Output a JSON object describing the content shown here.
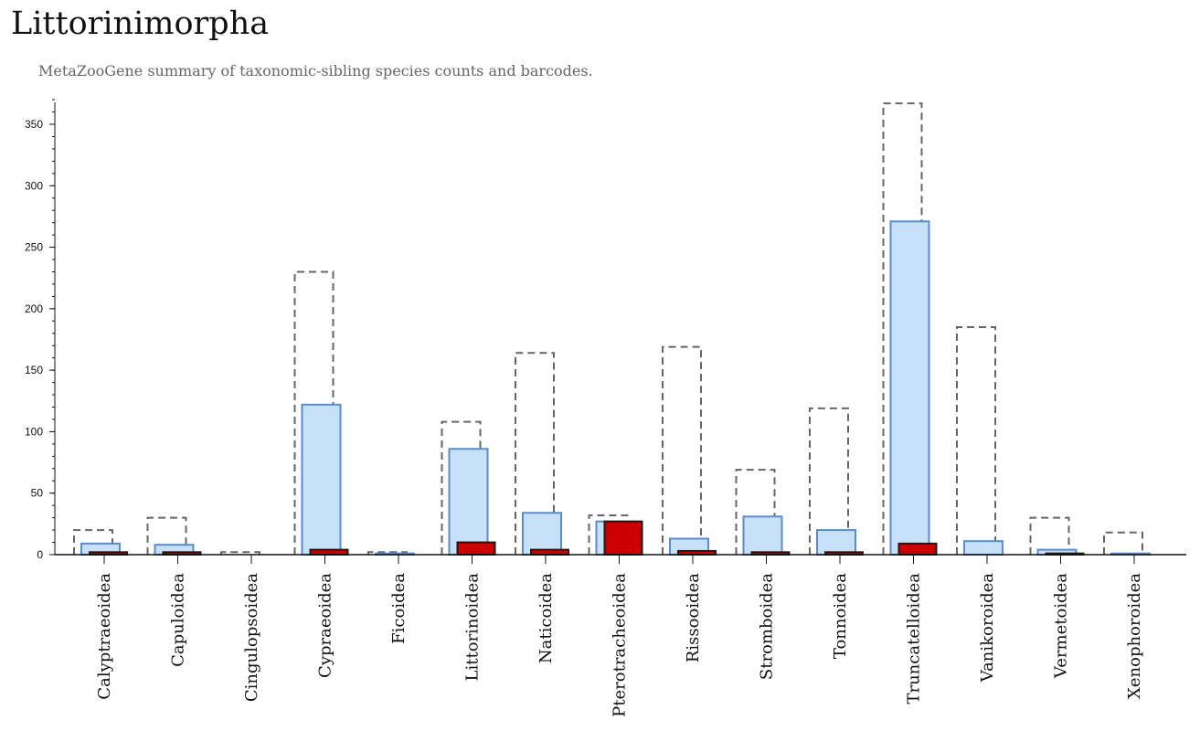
{
  "header": {
    "title": "Littorinimorpha",
    "subtitle": "MetaZooGene summary of taxonomic-sibling species counts and barcodes."
  },
  "colors": {
    "outline_dashed": "#666666",
    "blue_fill": "#c6e0f8",
    "blue_stroke": "#5b8cc9",
    "red_fill": "#cc0000",
    "red_stroke": "#1a1a1a",
    "axis": "#111111"
  },
  "chart_data": {
    "type": "bar",
    "title": "Littorinimorpha",
    "subtitle": "MetaZooGene summary of taxonomic-sibling species counts and barcodes.",
    "xlabel": "",
    "ylabel": "",
    "ylim": [
      0,
      370
    ],
    "yticks": [
      0,
      50,
      100,
      150,
      200,
      250,
      300,
      350
    ],
    "grid": false,
    "categories": [
      "Calyptraeoidea",
      "Capuloidea",
      "Cingulopsoidea",
      "Cypraeoidea",
      "Ficoidea",
      "Littorinoidea",
      "Naticoidea",
      "Pterotracheoidea",
      "Rissooidea",
      "Stromboidea",
      "Tonnoidea",
      "Truncatelloidea",
      "Vanikoroidea",
      "Vermetoidea",
      "Xenophoroidea"
    ],
    "series": [
      {
        "style": "dashed-outline",
        "values": [
          20,
          30,
          2,
          230,
          2,
          108,
          164,
          32,
          169,
          69,
          119,
          367,
          185,
          30,
          18
        ]
      },
      {
        "style": "light-blue",
        "values": [
          9,
          8,
          0,
          122,
          1,
          86,
          34,
          27,
          13,
          31,
          20,
          271,
          11,
          4,
          1
        ]
      },
      {
        "style": "red",
        "values": [
          2,
          2,
          0,
          4,
          0,
          10,
          4,
          27,
          3,
          2,
          2,
          9,
          0,
          1,
          0
        ]
      }
    ]
  }
}
